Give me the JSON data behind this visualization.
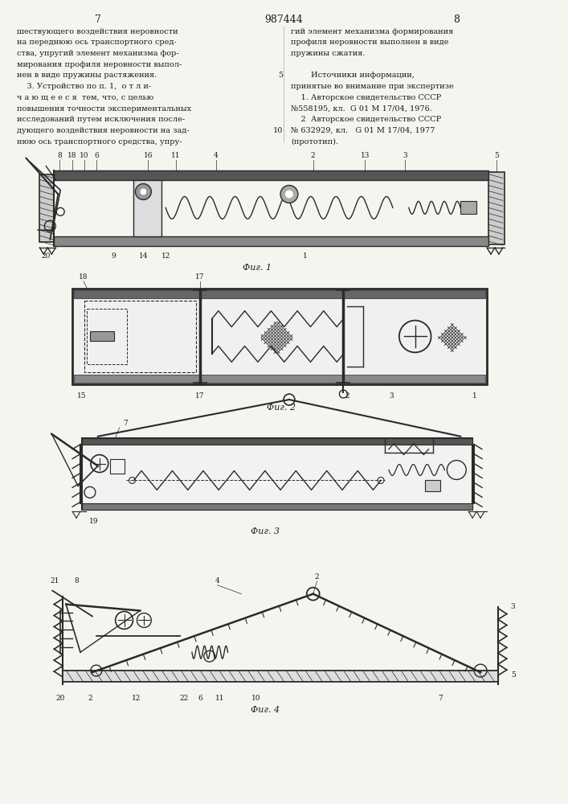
{
  "page_number_left": "7",
  "page_number_center": "987444",
  "page_number_right": "8",
  "left_column_text": [
    "шествующего воздействия неровности",
    "на переднюю ось транспортного сред-",
    "ства, упругий элемент механизма фор-",
    "мирования профиля неровности выпол-",
    "нен в виде пружины растяжения.",
    "    3. Устройство по п. 1,  о т л и-",
    "ч а ю щ е е с я  тем, что, с целью",
    "повышения точности экспериментальных",
    "исследований путем исключения после-",
    "дующего воздействия неровности на зад-",
    "нюю ось транспортного средства, упру-"
  ],
  "right_col_line10": "10",
  "right_column_text": [
    "гий элемент механизма формирования",
    "профиля неровности выполнен в виде",
    "пружины сжатия.",
    "",
    "        Источники информации,",
    "принятые во внимание при экспертизе",
    "    1. Авторское свидетельство СССР",
    "№558195, кл.  G 01 M 17/04, 1976.",
    "    2  Авторское свидетельство СССР",
    "№ 632929, кл.   G 01 M 17/04, 1977",
    "(прототип)."
  ],
  "right_col_number5": "5",
  "fig1_caption": "Фиг. 1",
  "fig2_caption": "Фиг. 2",
  "fig3_caption": "Фиг. 3",
  "fig4_caption": "Фиг. 4",
  "bg_color": "#f5f5f0",
  "text_color": "#1a1a1a",
  "line_color": "#2a2a2a"
}
